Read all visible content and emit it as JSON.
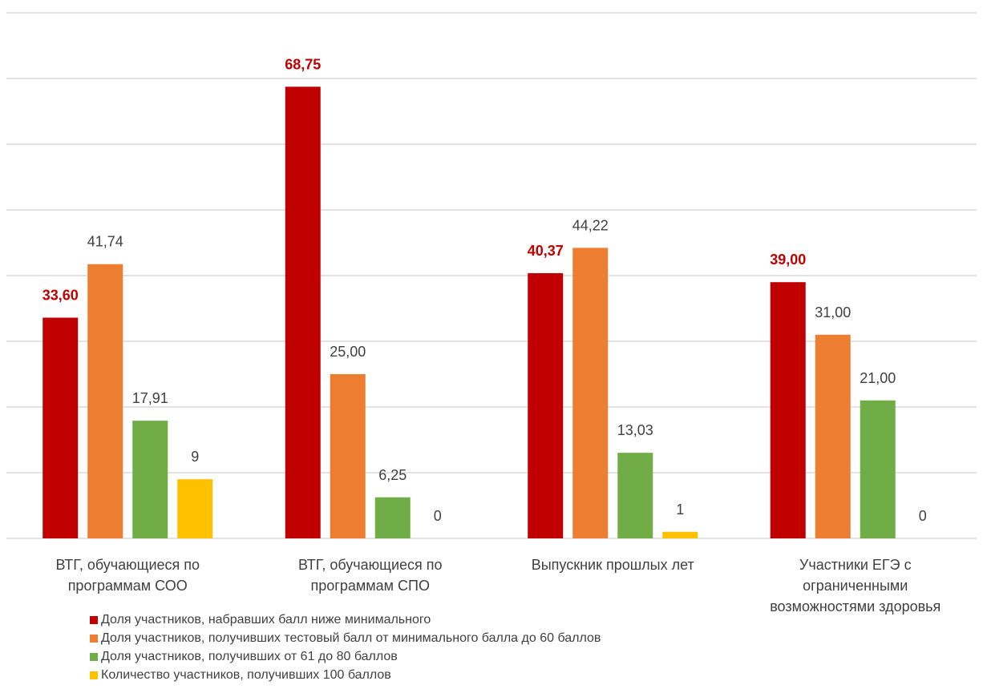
{
  "chart_data": {
    "type": "bar",
    "categories": [
      "ВТГ, обучающиеся по программам СОО",
      "ВТГ, обучающиеся по программам СПО",
      "Выпускник прошлых лет",
      "Участники ЕГЭ с ограниченными возможностями здоровья"
    ],
    "series": [
      {
        "name": "Доля участников, набравших балл ниже минимального",
        "color": "#c00000",
        "values": [
          33.6,
          68.75,
          40.37,
          39.0
        ],
        "value_labels": [
          "33,60",
          "68,75",
          "40,37",
          "39,00"
        ]
      },
      {
        "name": "Доля участников, получивших тестовый балл от минимального балла до 60 баллов",
        "color": "#ed7d31",
        "values": [
          41.74,
          25.0,
          44.22,
          31.0
        ],
        "value_labels": [
          "41,74",
          "25,00",
          "44,22",
          "31,00"
        ]
      },
      {
        "name": "Доля участников, получивших от 61 до 80 баллов",
        "color": "#70ad47",
        "values": [
          17.91,
          6.25,
          13.03,
          21.0
        ],
        "value_labels": [
          "17,91",
          "6,25",
          "13,03",
          "21,00"
        ]
      },
      {
        "name": "Количество участников, получивших 100 баллов",
        "color": "#ffc000",
        "values": [
          9,
          0,
          1,
          0
        ]
      }
    ],
    "ylim": [
      0,
      80
    ],
    "yticks": [
      0,
      10,
      20,
      30,
      40,
      50,
      60,
      70,
      80
    ],
    "grid": true
  }
}
